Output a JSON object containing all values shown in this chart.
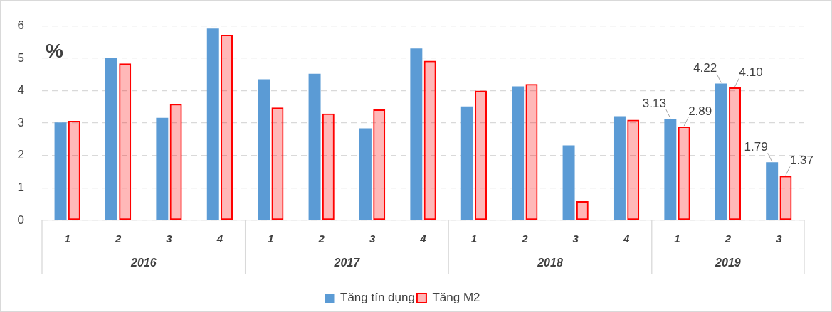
{
  "chart_data": {
    "type": "bar",
    "ylabel": "%",
    "categories": [
      "1",
      "2",
      "3",
      "4",
      "1",
      "2",
      "3",
      "4",
      "1",
      "2",
      "3",
      "4",
      "1",
      "2",
      "3"
    ],
    "annotations": [
      "2016",
      "2017",
      "2018",
      "2019"
    ],
    "series": [
      {
        "name": "Tăng tín dụng",
        "color": "#5b9bd5",
        "values": [
          3.02,
          5.01,
          3.16,
          5.91,
          4.35,
          4.52,
          2.84,
          5.3,
          3.51,
          4.13,
          2.31,
          3.21,
          3.13,
          4.22,
          1.79
        ],
        "value_labels": [
          null,
          null,
          null,
          null,
          null,
          null,
          null,
          null,
          null,
          null,
          null,
          null,
          "3.13",
          "4.22",
          "1.79"
        ]
      },
      {
        "name": "Tăng M2",
        "color": "#ff0000",
        "values": [
          3.07,
          4.84,
          3.59,
          5.72,
          3.48,
          3.29,
          3.42,
          4.92,
          4.0,
          4.2,
          0.59,
          3.1,
          2.89,
          4.1,
          1.37
        ],
        "value_labels": [
          null,
          null,
          null,
          null,
          null,
          null,
          null,
          null,
          null,
          null,
          null,
          null,
          "2.89",
          "4.10",
          "1.37"
        ]
      }
    ],
    "ylim": [
      0,
      6
    ],
    "yticks": [
      0,
      1,
      2,
      3,
      4,
      5,
      6
    ],
    "grid": "y",
    "legend": "bottom"
  }
}
